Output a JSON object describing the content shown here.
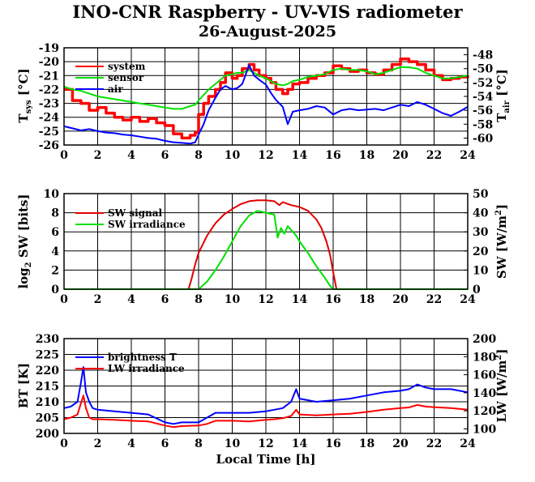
{
  "title": "INO-CNR Raspberry - UV-VIS radiometer",
  "subtitle": "26-August-2025",
  "xlabel": "Local Time [h]",
  "x_ticks": [
    "0",
    "2",
    "4",
    "6",
    "8",
    "10",
    "12",
    "14",
    "16",
    "18",
    "20",
    "22",
    "24"
  ],
  "colors": {
    "system": "#ff0000",
    "sensor": "#00e000",
    "air": "#0000ff",
    "sw_signal": "#e00000",
    "sw_irradiance": "#00e000",
    "brightness": "#0000ff",
    "lw": "#ff0000"
  },
  "chart_data": [
    {
      "type": "line",
      "ylabel_left": "T_sys [°C]",
      "ylabel_right": "T_air [°C]",
      "ylim": [
        -26,
        -19
      ],
      "ylim_right": [
        -61,
        -47
      ],
      "xlim": [
        0,
        24
      ],
      "grid": true,
      "legend_position": "top-left",
      "yticks_left": [
        "-19",
        "-20",
        "-21",
        "-22",
        "-23",
        "-24",
        "-25",
        "-26"
      ],
      "yticks_right": [
        "-48",
        "-50",
        "-52",
        "-54",
        "-56",
        "-58",
        "-60"
      ],
      "series": [
        {
          "name": "system",
          "axis": "left",
          "style": "step",
          "x": [
            0,
            0.5,
            1,
            1.5,
            2,
            2.5,
            3,
            3.5,
            4,
            4.5,
            5,
            5.5,
            6,
            6.5,
            7,
            7.5,
            7.8,
            8,
            8.3,
            8.6,
            9,
            9.3,
            9.6,
            10,
            10.3,
            10.6,
            11,
            11.3,
            11.6,
            12,
            12.3,
            12.6,
            13,
            13.3,
            13.6,
            14,
            14.5,
            15,
            15.5,
            16,
            16.5,
            17,
            17.5,
            18,
            18.5,
            19,
            19.5,
            20,
            20.5,
            21,
            21.5,
            22,
            22.5,
            23,
            23.5,
            24
          ],
          "y": [
            -22,
            -22.8,
            -23,
            -23.5,
            -23.3,
            -23.7,
            -24,
            -24.2,
            -24,
            -24.3,
            -24.1,
            -24.4,
            -24.6,
            -25.2,
            -25.5,
            -25.3,
            -25.1,
            -23.8,
            -23,
            -22.5,
            -22,
            -21.5,
            -20.8,
            -21.2,
            -21,
            -20.5,
            -20.2,
            -20.6,
            -21,
            -21.2,
            -21.5,
            -22,
            -22.3,
            -22,
            -21.6,
            -21.5,
            -21.2,
            -21,
            -20.8,
            -20.3,
            -20.5,
            -20.7,
            -20.6,
            -20.8,
            -20.9,
            -20.6,
            -20.2,
            -19.8,
            -20,
            -20.2,
            -20.6,
            -21,
            -21.3,
            -21.2,
            -21.1,
            -21
          ]
        },
        {
          "name": "sensor",
          "axis": "left",
          "x": [
            0,
            0.5,
            1,
            1.5,
            2,
            2.5,
            3,
            3.5,
            4,
            4.5,
            5,
            5.5,
            6,
            6.5,
            7,
            7.5,
            7.8,
            8,
            8.3,
            8.6,
            9,
            9.3,
            9.6,
            10,
            10.3,
            10.6,
            11,
            11.3,
            11.6,
            12,
            12.3,
            12.6,
            13,
            13.3,
            13.6,
            14,
            14.5,
            15,
            15.5,
            16,
            16.5,
            17,
            17.5,
            18,
            18.5,
            19,
            19.5,
            20,
            20.5,
            21,
            21.5,
            22,
            22.5,
            23,
            23.5,
            24
          ],
          "y": [
            -21.8,
            -22,
            -22.1,
            -22.3,
            -22.5,
            -22.6,
            -22.7,
            -22.8,
            -22.9,
            -23,
            -23.1,
            -23.2,
            -23.3,
            -23.4,
            -23.4,
            -23.2,
            -23.1,
            -22.8,
            -22.4,
            -22,
            -21.6,
            -21.3,
            -21,
            -20.9,
            -20.8,
            -20.8,
            -20.6,
            -20.8,
            -21,
            -21.2,
            -21.4,
            -21.6,
            -21.7,
            -21.6,
            -21.4,
            -21.3,
            -21.1,
            -21,
            -20.9,
            -20.6,
            -20.5,
            -20.6,
            -20.6,
            -20.7,
            -20.9,
            -20.8,
            -20.6,
            -20.4,
            -20.4,
            -20.5,
            -20.8,
            -21,
            -21.2,
            -21.2,
            -21.1,
            -21
          ]
        },
        {
          "name": "air",
          "axis": "right",
          "x": [
            0,
            0.5,
            1,
            1.5,
            2,
            2.5,
            3,
            3.5,
            4,
            4.5,
            5,
            5.5,
            6,
            6.5,
            7,
            7.5,
            7.8,
            8,
            8.3,
            8.6,
            9,
            9.3,
            9.6,
            10,
            10.3,
            10.6,
            11,
            11.3,
            11.6,
            12,
            12.3,
            12.6,
            13,
            13.3,
            13.6,
            14,
            14.5,
            15,
            15.5,
            16,
            16.5,
            17,
            17.5,
            18,
            18.5,
            19,
            19.5,
            20,
            20.5,
            21,
            21.5,
            22,
            22.5,
            23,
            23.5,
            24
          ],
          "y": [
            -58.3,
            -58.6,
            -58.9,
            -58.7,
            -59,
            -59.2,
            -59.3,
            -59.5,
            -59.6,
            -59.8,
            -60,
            -60.1,
            -60.4,
            -60.6,
            -60.7,
            -60.8,
            -60.6,
            -59.5,
            -58,
            -56,
            -54.2,
            -53,
            -52.5,
            -53,
            -52.8,
            -52.2,
            -49.5,
            -51,
            -51.6,
            -52.3,
            -53.5,
            -54.5,
            -55.5,
            -58,
            -56.2,
            -56,
            -55.8,
            -55.4,
            -55.6,
            -56.6,
            -56,
            -55.8,
            -56,
            -55.9,
            -55.8,
            -56,
            -55.6,
            -55.2,
            -55.4,
            -54.8,
            -55.2,
            -55.8,
            -56.4,
            -56.8,
            -56.2,
            -55.5
          ]
        }
      ]
    },
    {
      "type": "line",
      "ylabel_left": "log2 SW [bits]",
      "ylabel_right": "SW [W/m2]",
      "ylim": [
        0,
        10
      ],
      "ylim_right": [
        0,
        50
      ],
      "xlim": [
        0,
        24
      ],
      "grid": true,
      "legend_position": "top-left",
      "yticks_left": [
        "0",
        "2",
        "4",
        "6",
        "8",
        "10"
      ],
      "yticks_right": [
        "0",
        "10",
        "20",
        "30",
        "40",
        "50"
      ],
      "series": [
        {
          "name": "SW signal",
          "axis": "left",
          "x": [
            0,
            7.2,
            7.4,
            7.6,
            7.8,
            8,
            8.5,
            9,
            9.5,
            10,
            10.5,
            11,
            11.5,
            12,
            12.5,
            12.8,
            13,
            13.5,
            14,
            14.5,
            15,
            15.3,
            15.6,
            15.8,
            16,
            16.2,
            24
          ],
          "y": [
            0,
            0,
            0,
            1.2,
            2.6,
            3.8,
            5.6,
            6.9,
            7.8,
            8.4,
            8.9,
            9.2,
            9.3,
            9.3,
            9.2,
            8.8,
            9.1,
            8.8,
            8.6,
            8.2,
            7.3,
            6.4,
            5,
            3.7,
            1.8,
            0,
            0
          ]
        },
        {
          "name": "SW irradiance",
          "axis": "right",
          "x": [
            0,
            7.8,
            8,
            8.5,
            9,
            9.5,
            10,
            10.5,
            11,
            11.5,
            12,
            12.5,
            12.7,
            12.9,
            13.1,
            13.3,
            13.5,
            13.8,
            14,
            14.5,
            15,
            15.5,
            15.8,
            16,
            24
          ],
          "y": [
            0,
            0,
            0,
            4,
            10,
            17,
            25,
            33,
            38.5,
            41,
            40,
            39,
            27,
            32,
            29,
            33,
            31,
            28,
            25,
            19,
            12,
            6,
            2,
            0,
            0
          ]
        }
      ]
    },
    {
      "type": "line",
      "ylabel_left": "BT [K]",
      "ylabel_right": "LW [W/m2]",
      "xlabel": "Local Time [h]",
      "ylim": [
        200,
        230
      ],
      "ylim_right": [
        95,
        200
      ],
      "xlim": [
        0,
        24
      ],
      "grid": true,
      "legend_position": "top-left",
      "yticks_left": [
        "200",
        "205",
        "210",
        "215",
        "220",
        "225",
        "230"
      ],
      "yticks_right": [
        "100",
        "120",
        "140",
        "160",
        "180",
        "200"
      ],
      "series": [
        {
          "name": "brightness T",
          "axis": "left",
          "x": [
            0,
            0.4,
            0.8,
            1,
            1.15,
            1.3,
            1.5,
            1.7,
            2,
            3,
            4,
            5,
            6,
            6.5,
            7,
            8,
            8.5,
            9,
            10,
            11,
            12,
            12.5,
            13,
            13.5,
            13.8,
            14,
            15,
            16,
            17,
            18,
            19,
            20,
            20.5,
            21,
            21.5,
            22,
            23,
            24
          ],
          "y": [
            208,
            208.5,
            210,
            216,
            221,
            213,
            210,
            208,
            207.5,
            207,
            206.5,
            206,
            203.5,
            203,
            203.5,
            203.5,
            205,
            206.5,
            206.5,
            206.5,
            207,
            207.5,
            208,
            210,
            214,
            211,
            210,
            210.5,
            211,
            212,
            213,
            213.5,
            214,
            215.5,
            214.5,
            214,
            214,
            213
          ]
        },
        {
          "name": "LW irradiance",
          "axis": "left",
          "x": [
            0,
            0.4,
            0.8,
            1,
            1.15,
            1.3,
            1.5,
            1.7,
            2,
            3,
            4,
            5,
            6,
            6.5,
            7,
            8,
            8.5,
            9,
            10,
            11,
            12,
            12.5,
            13,
            13.5,
            13.8,
            14,
            15,
            16,
            17,
            18,
            19,
            20,
            20.5,
            21,
            21.5,
            22,
            23,
            24
          ],
          "y": [
            204.5,
            205,
            206,
            209.5,
            212,
            208,
            205,
            204.5,
            204.5,
            204.3,
            204,
            203.8,
            202.5,
            202,
            202.3,
            202.5,
            203,
            204,
            204,
            203.8,
            204.3,
            204.5,
            204.8,
            205.5,
            207.5,
            206,
            205.7,
            206,
            206.2,
            206.8,
            207.5,
            208,
            208.2,
            209,
            208.5,
            208.3,
            208,
            207.5
          ]
        }
      ]
    }
  ]
}
